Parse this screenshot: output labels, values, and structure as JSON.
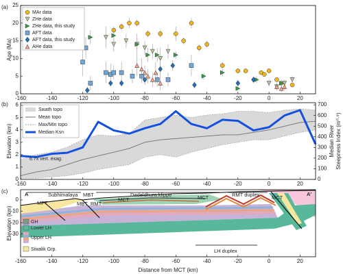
{
  "chart_data": [
    {
      "type": "scatter",
      "panel_label": "(a)",
      "ylabel": "Age (Ma)",
      "xlim": [
        -160,
        30
      ],
      "ylim": [
        0,
        25
      ],
      "xticks": [
        -160,
        -140,
        -120,
        -100,
        -80,
        -60,
        -40,
        -20,
        0,
        20
      ],
      "yticks": [
        0,
        5,
        10,
        15,
        20,
        25
      ],
      "legend": "upper left",
      "series": [
        {
          "name": "MAr data",
          "marker": "circle",
          "color": "#f2b61c",
          "x": [
            -100,
            -95,
            -90,
            -85,
            -78,
            -70,
            -60,
            -55,
            -50,
            -45,
            -40,
            -30,
            -20,
            -15,
            -5,
            -3,
            0,
            5,
            8,
            15
          ],
          "y": [
            18,
            19,
            20,
            20,
            17,
            17,
            17,
            15,
            20,
            13,
            14,
            8,
            6.5,
            6.5,
            6,
            5.5,
            6.5,
            4,
            3,
            2.5
          ],
          "errors": [
            1,
            1,
            1.5,
            1,
            1,
            1,
            2,
            1,
            1.5,
            1,
            1,
            1,
            0.5,
            0.5,
            0.5,
            0.5,
            0.5,
            0.5,
            0.5,
            0.5
          ]
        },
        {
          "name": "ZHe data",
          "marker": "triangle-down",
          "color": "#b7c7a0",
          "x": [
            -105,
            -100,
            -92,
            -85,
            -80,
            -75,
            -70,
            -65,
            0,
            5,
            10,
            15
          ],
          "y": [
            16,
            14,
            15,
            14,
            13,
            12,
            10,
            12,
            3,
            2,
            3,
            4
          ],
          "errors": [
            3,
            2,
            2,
            3,
            2,
            2,
            3,
            2,
            1,
            1,
            1,
            1
          ]
        },
        {
          "name": "ZHe data, this study",
          "marker": "triangle-right",
          "color": "#2f9e44",
          "x": [
            -125,
            -115,
            -100,
            -85,
            -78,
            -72,
            -60,
            -42,
            -30,
            -20,
            -8,
            8
          ],
          "y": [
            18,
            16,
            16.5,
            14,
            11,
            11,
            11,
            5,
            6,
            1.5,
            4,
            3
          ],
          "errors": [
            1,
            2,
            2,
            2,
            2,
            2,
            1,
            1,
            1,
            0.5,
            1,
            1
          ]
        },
        {
          "name": "AFT data",
          "marker": "square",
          "color": "#6fa8dc",
          "x": [
            -120,
            -118,
            -115,
            -105,
            -102,
            -100,
            -95,
            -88,
            -82,
            -72,
            -65,
            -50
          ],
          "y": [
            9,
            13,
            3,
            6,
            5.5,
            6,
            6,
            5,
            5,
            4,
            4,
            8
          ],
          "errors": [
            4,
            3,
            2,
            3,
            3,
            2,
            3,
            2,
            2,
            2,
            2,
            3
          ]
        },
        {
          "name": "AFT data, this study",
          "marker": "diamond",
          "color": "#1f6fbf",
          "x": [
            -117,
            -102,
            -95,
            -80,
            -70,
            -62,
            -48,
            -20,
            -10
          ],
          "y": [
            1,
            3,
            3,
            4,
            7,
            8,
            2.5,
            3,
            4
          ],
          "errors": [
            1,
            1,
            1,
            1.5,
            2,
            1.5,
            1,
            1,
            1
          ]
        },
        {
          "name": "AHe data",
          "marker": "triangle-up",
          "color": "#f4a08a",
          "x": [
            -85,
            -82,
            -80,
            -78,
            -75,
            -73,
            -70,
            5,
            8,
            10
          ],
          "y": [
            8,
            7,
            6,
            5,
            4,
            6,
            3,
            2,
            1.5,
            2
          ],
          "errors": [
            3,
            3,
            2,
            2,
            2,
            3,
            2,
            1,
            1,
            1
          ]
        }
      ]
    },
    {
      "type": "swath",
      "panel_label": "(b)",
      "ylabel": "Elevation (km)",
      "y2label": [
        "Median River",
        "Steepness Index (m⁰·⁹)"
      ],
      "annotation": "6.7x vert. exag.",
      "xlim": [
        -160,
        30
      ],
      "ylim": [
        0,
        6.2
      ],
      "y2lim": [
        0,
        720
      ],
      "xticks": [
        -160,
        -140,
        -120,
        -100,
        -80,
        -60,
        -40,
        -20,
        0,
        20
      ],
      "yticks": [
        0,
        1,
        2,
        3,
        4,
        5,
        6
      ],
      "y2ticks": [
        0,
        100,
        200,
        300,
        400,
        500,
        600,
        700
      ],
      "legend": "upper left",
      "x": [
        -160,
        -150,
        -140,
        -130,
        -120,
        -110,
        -100,
        -90,
        -80,
        -70,
        -60,
        -50,
        -40,
        -30,
        -20,
        -10,
        0,
        10,
        20,
        30
      ],
      "series": [
        {
          "name": "Swath topo",
          "color": "#d9d9d9",
          "upper": [
            1.6,
            2.0,
            2.2,
            2.6,
            3.2,
            3.6,
            3.5,
            3.7,
            4.8,
            5.0,
            5.2,
            5.0,
            5.2,
            5.3,
            5.5,
            5.5,
            5.4,
            5.6,
            5.7,
            5.6
          ],
          "lower": [
            0.1,
            0.1,
            0.2,
            0.3,
            0.5,
            0.8,
            1.0,
            1.2,
            1.8,
            2.0,
            1.8,
            2.2,
            2.5,
            2.8,
            3.0,
            3.2,
            3.2,
            3.5,
            3.8,
            4.0
          ]
        },
        {
          "name": "Mean topo",
          "color": "#707070",
          "values": [
            0.3,
            0.6,
            0.8,
            1.2,
            1.6,
            1.9,
            2.2,
            2.5,
            3.0,
            3.2,
            3.3,
            3.4,
            3.5,
            3.6,
            3.6,
            3.8,
            4.0,
            4.3,
            4.6,
            4.7
          ]
        },
        {
          "name": "Max/Min topo",
          "color": "#9a9a9a",
          "dashed": true
        },
        {
          "name": "Median Ksn",
          "color": "#1450e0",
          "axis": "y2",
          "values": [
            220,
            210,
            240,
            250,
            300,
            540,
            460,
            430,
            480,
            520,
            640,
            520,
            480,
            560,
            550,
            460,
            490,
            600,
            650,
            330
          ]
        }
      ]
    },
    {
      "type": "section",
      "panel_label": "(c)",
      "ylabel": "Elevation (km)",
      "xlabel": "Distance from MCT (km)",
      "xlim": [
        -160,
        30
      ],
      "ylim": [
        -50,
        9
      ],
      "xticks": [
        -160,
        -140,
        -120,
        -100,
        -80,
        -60,
        -40,
        -20,
        0,
        20
      ],
      "yticks": [
        0,
        -10,
        -20,
        -30
      ],
      "labels": {
        "a": "A",
        "a_prime": "A'",
        "subhimalaya": "Subhimalaya",
        "mbt_top": "MBT",
        "klippe": "Dadeldhura klippe",
        "rmt_duplex": "RMT duplex",
        "mft": "MFT",
        "mbt": "MBT",
        "rmt": "RMT",
        "mct_1": "MCT",
        "mct_2": "MCT",
        "mct_3": "MCT",
        "lh_duplex": "LH duplex"
      },
      "legend_items": [
        "GH",
        "Lower LH",
        "Upper LH",
        "Siwalik Grp."
      ]
    }
  ]
}
